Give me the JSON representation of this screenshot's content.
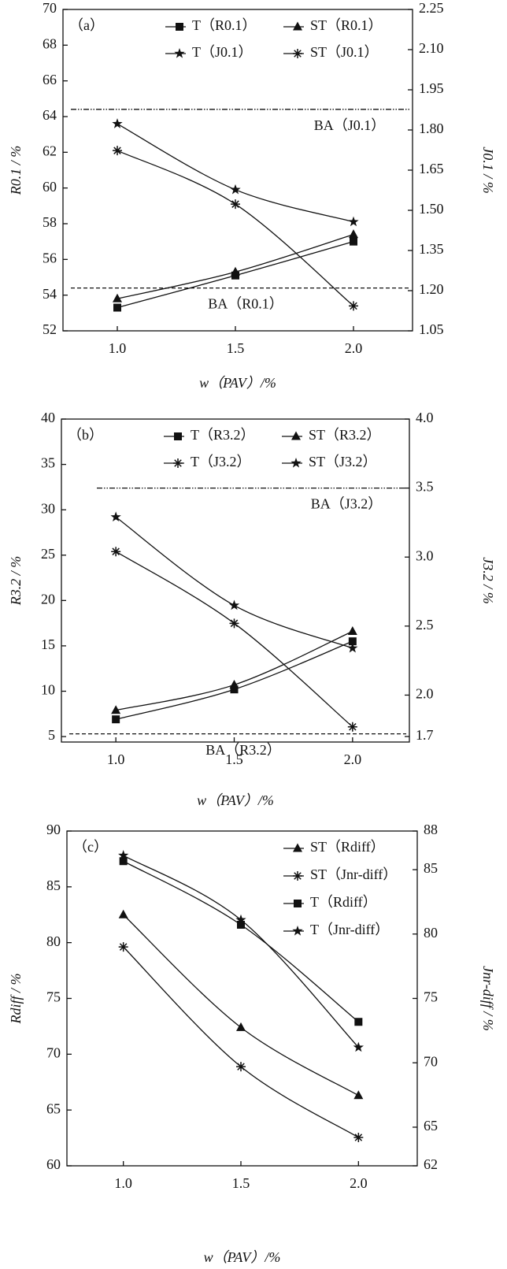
{
  "chart_data": [
    {
      "type": "line",
      "panel_label": "（a）",
      "x_label": "w（PAV）/%",
      "y_label": "R0.1 / %",
      "y2_label": "J0.1 / %",
      "x": [
        1.0,
        1.5,
        2.0
      ],
      "xlim": [
        0.77,
        2.25
      ],
      "xticks": [
        {
          "value": 1,
          "label": "1.0"
        },
        1.5,
        {
          "value": 2,
          "label": "2.0"
        }
      ],
      "ylim": [
        52,
        70
      ],
      "yticks": [
        52,
        54,
        56,
        58,
        60,
        62,
        64,
        66,
        68,
        70
      ],
      "y2lim": [
        1.05,
        2.25
      ],
      "y2ticks": [
        1.05,
        {
          "value": 1.2,
          "label": "1.20"
        },
        1.35,
        {
          "value": 1.5,
          "label": "1.50"
        },
        1.65,
        {
          "value": 1.8,
          "label": "1.80"
        },
        1.95,
        {
          "value": 2.1,
          "label": "2.10"
        },
        2.25
      ],
      "legend_columns": 2,
      "series": [
        {
          "name": "T（R0.1）",
          "color": "#111111",
          "marker": "square",
          "values": [
            53.3,
            55.1,
            57.0
          ]
        },
        {
          "name": "ST（R0.1）",
          "color": "#111111",
          "marker": "triangle",
          "values": [
            53.8,
            55.3,
            57.4
          ]
        },
        {
          "name": "T（J0.1）",
          "color": "#111111",
          "marker": "star",
          "axis": "y2",
          "values": [
            1.823,
            1.577,
            1.457
          ]
        },
        {
          "name": "ST（J0.1）",
          "color": "#111111",
          "marker": "asterisk",
          "axis": "y2",
          "values": [
            1.723,
            1.523,
            1.143
          ]
        }
      ],
      "reference_lines": [
        {
          "label": "BA（J0.1）",
          "value": 1.877,
          "axis": "y2",
          "style": "dashdot"
        },
        {
          "label": "BA（R0.1）",
          "value": 54.4,
          "style": "dashed"
        }
      ]
    },
    {
      "type": "line",
      "panel_label": "（b）",
      "x_label": "w（PAV）/%",
      "y_label": "R3.2 / %",
      "y2_label": "J3.2 / %",
      "x": [
        1.0,
        1.5,
        2.0
      ],
      "xlim": [
        0.77,
        2.24
      ],
      "xticks": [
        {
          "value": 1,
          "label": "1.0"
        },
        1.5,
        {
          "value": 2,
          "label": "2.0"
        }
      ],
      "ylim": [
        4.4,
        40
      ],
      "yticks": [
        5,
        10,
        15,
        20,
        25,
        30,
        35,
        40
      ],
      "y2lim": [
        1.66,
        4.0
      ],
      "y2ticks": [
        1.7,
        {
          "value": 2,
          "label": "2.0"
        },
        2.5,
        {
          "value": 3,
          "label": "3.0"
        },
        3.5,
        {
          "value": 4,
          "label": "4.0"
        }
      ],
      "legend_columns": 2,
      "series": [
        {
          "name": "T（R3.2）",
          "color": "#111111",
          "marker": "square",
          "values": [
            6.9,
            10.2,
            15.5
          ]
        },
        {
          "name": "ST（R3.2）",
          "color": "#111111",
          "marker": "triangle",
          "values": [
            7.9,
            10.7,
            16.6
          ]
        },
        {
          "name": "T（J3.2）",
          "color": "#111111",
          "marker": "asterisk",
          "axis": "y2",
          "values": [
            3.04,
            2.52,
            1.77
          ]
        },
        {
          "name": "ST（J3.2）",
          "color": "#111111",
          "marker": "star",
          "axis": "y2",
          "values": [
            3.29,
            2.65,
            2.34
          ]
        }
      ],
      "reference_lines": [
        {
          "label": "BA（J3.2）",
          "value": 3.5,
          "axis": "y2",
          "style": "dashdot"
        },
        {
          "label": "BA（R3.2）",
          "value": 5.3,
          "style": "dashed"
        }
      ]
    },
    {
      "type": "line",
      "panel_label": "（c）",
      "x_label": "w（PAV）/%",
      "y_label": "Rdiff / %",
      "y2_label": "Jnr-diff / %",
      "x": [
        1.0,
        1.5,
        2.0
      ],
      "xlim": [
        0.76,
        2.25
      ],
      "xticks": [
        {
          "value": 1,
          "label": "1.0"
        },
        1.5,
        {
          "value": 2,
          "label": "2.0"
        }
      ],
      "ylim": [
        60,
        90
      ],
      "yticks": [
        60,
        65,
        70,
        75,
        80,
        85,
        90
      ],
      "y2lim": [
        62,
        88
      ],
      "y2ticks": [
        62,
        65,
        70,
        75,
        80,
        85,
        88
      ],
      "legend_columns": 1,
      "series": [
        {
          "name": "ST（Rdiff）",
          "color": "#111111",
          "marker": "triangle",
          "values": [
            82.5,
            72.4,
            66.3
          ]
        },
        {
          "name": "ST（Jnr-diff）",
          "color": "#111111",
          "marker": "asterisk",
          "axis": "y2",
          "values": [
            79.0,
            69.7,
            64.2
          ]
        },
        {
          "name": "T（Rdiff）",
          "color": "#111111",
          "marker": "square",
          "values": [
            87.3,
            81.6,
            72.9
          ]
        },
        {
          "name": "T（Jnr-diff）",
          "color": "#111111",
          "marker": "star",
          "axis": "y2",
          "values": [
            86.1,
            81.1,
            71.2
          ]
        }
      ]
    }
  ]
}
